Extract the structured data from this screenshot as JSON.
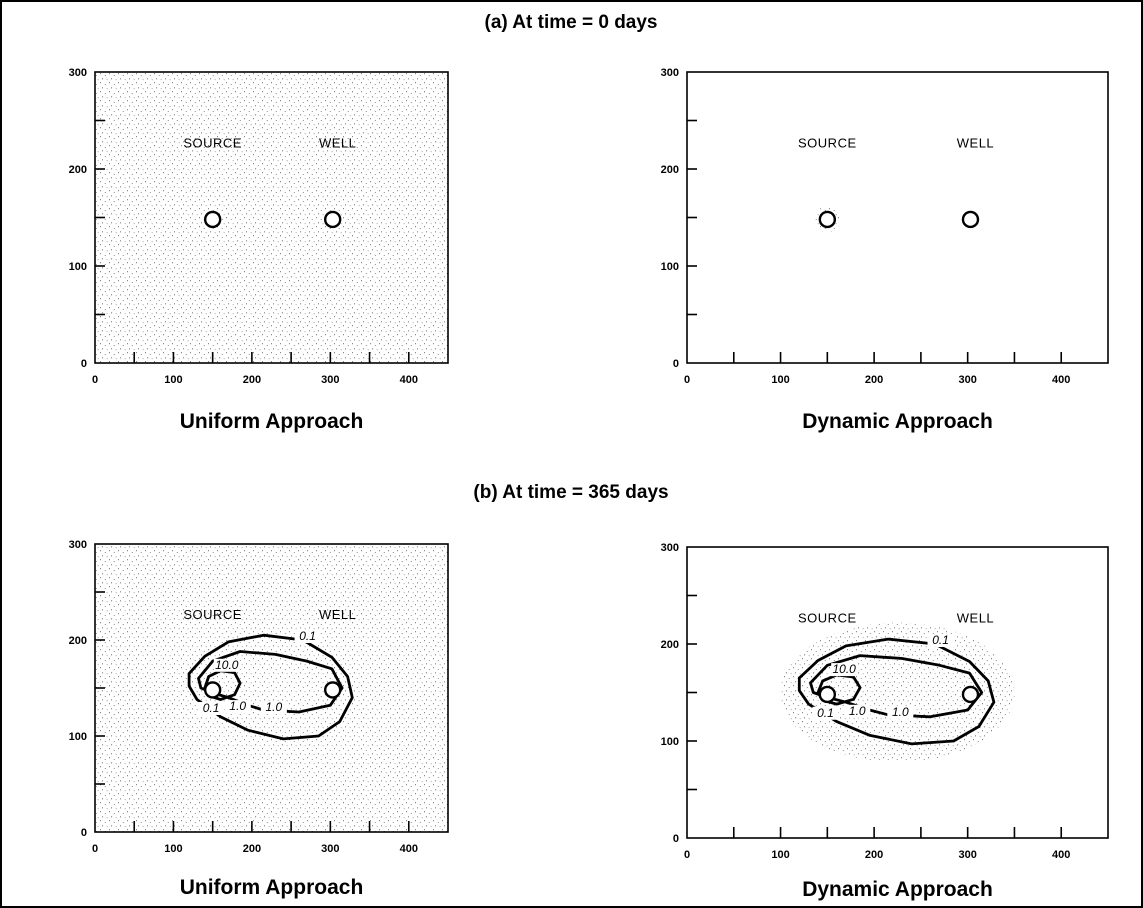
{
  "sections": [
    {
      "id": "a",
      "title": "(a) At time = 0 days"
    },
    {
      "id": "b",
      "title": "(b) At time = 365 days"
    }
  ],
  "panels": [
    {
      "id": "a-uniform",
      "section": "a",
      "caption": "Uniform Approach",
      "shading": "full",
      "contours": false
    },
    {
      "id": "a-dynamic",
      "section": "a",
      "caption": "Dynamic Approach",
      "shading": "markers",
      "contours": false
    },
    {
      "id": "b-uniform",
      "section": "b",
      "caption": "Uniform Approach",
      "shading": "full",
      "contours": true
    },
    {
      "id": "b-dynamic",
      "section": "b",
      "caption": "Dynamic Approach",
      "shading": "plume",
      "contours": true
    }
  ],
  "axes": {
    "xlim": [
      0,
      450
    ],
    "ylim": [
      0,
      300
    ],
    "x_tick_labels": [
      "0",
      "100",
      "200",
      "300",
      "400"
    ],
    "y_tick_labels": [
      "0",
      "100",
      "200",
      "300"
    ]
  },
  "markers": [
    {
      "label": "SOURCE",
      "x": 150,
      "y": 148
    },
    {
      "label": "WELL",
      "x": 303,
      "y": 148
    }
  ],
  "contour_labels": [
    "0.1",
    "10.0",
    "1.0",
    "0.1",
    "1.0"
  ],
  "colors": {
    "ink": "#000000",
    "background": "#ffffff",
    "stipple": "#3a3a3a"
  }
}
